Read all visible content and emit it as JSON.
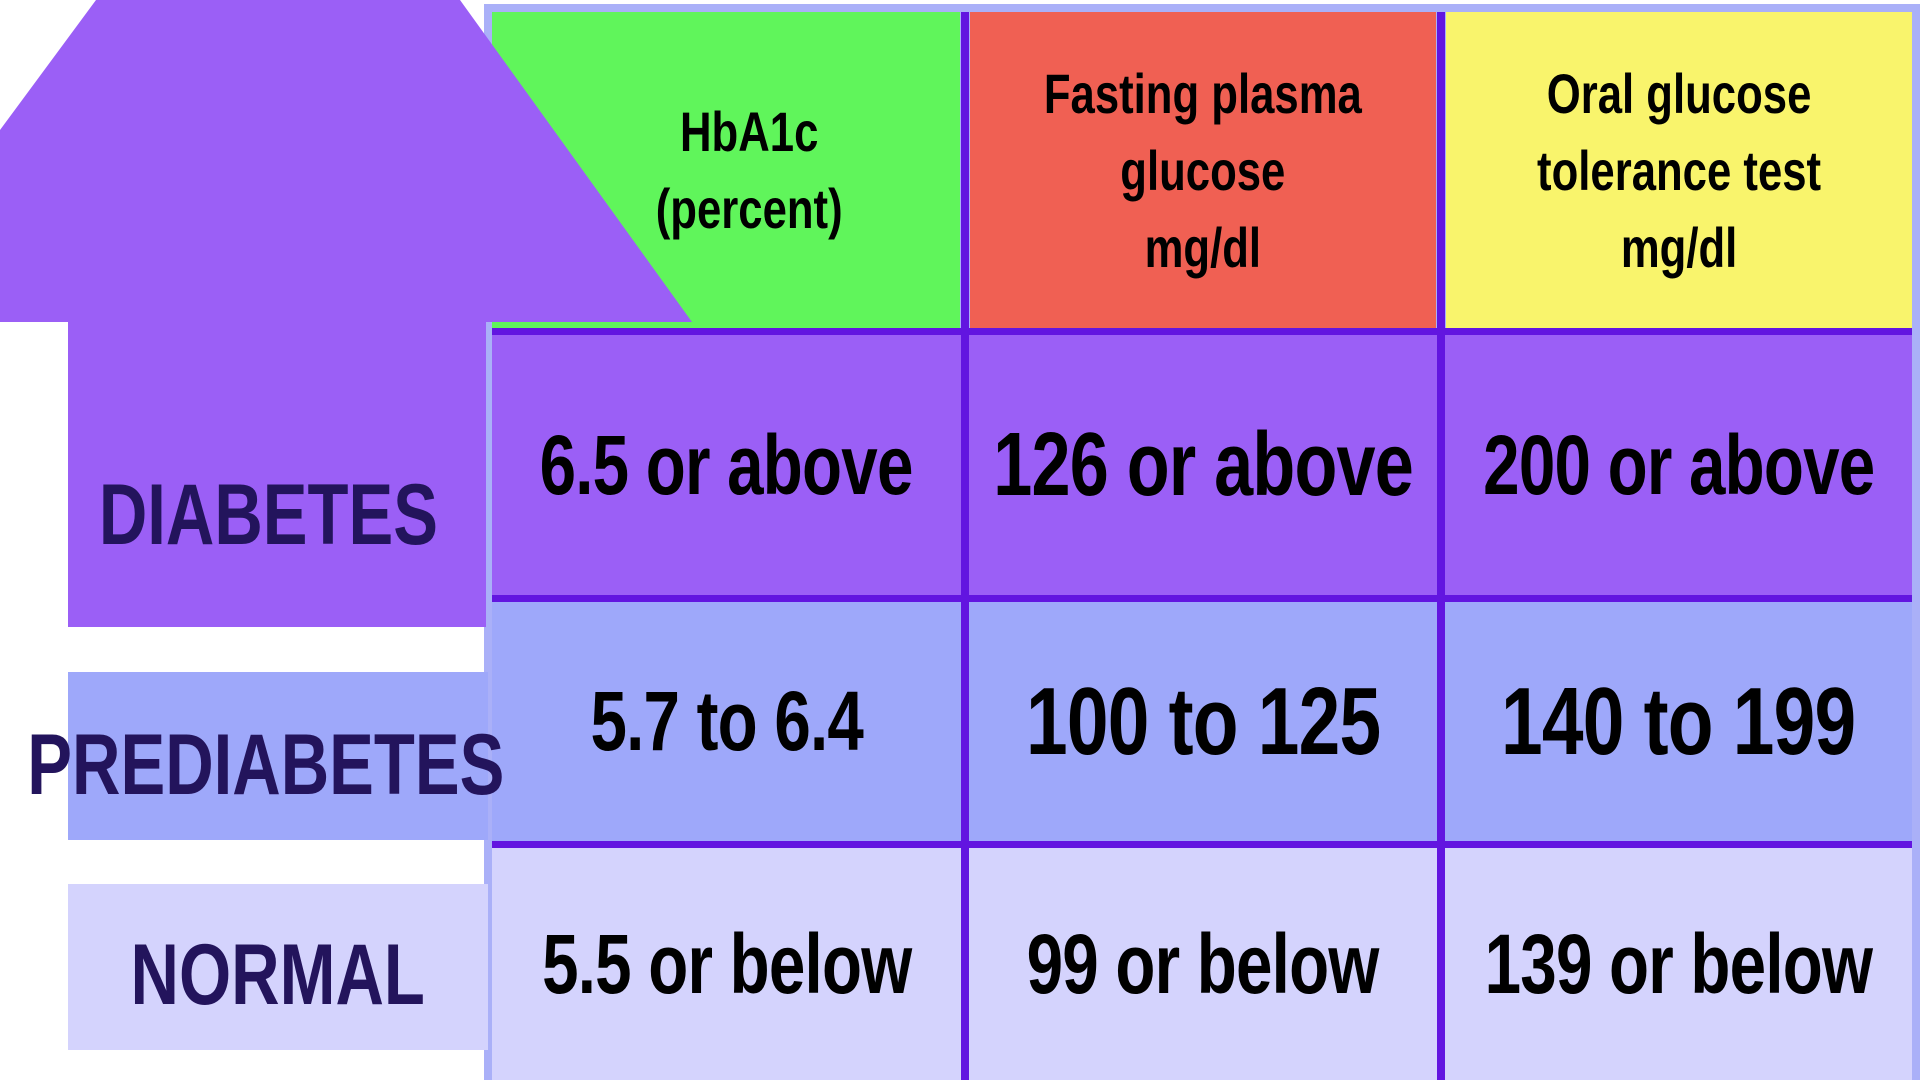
{
  "colors": {
    "diabetes": "#9b5ff6",
    "prediabetes": "#9ea8fa",
    "normal": "#d4d3fd",
    "hba1c_header": "#60f55b",
    "fasting_header": "#f06053",
    "ogtt_header": "#f9f46c",
    "grid_line": "#6215e0",
    "label_text": "#23145c"
  },
  "headers": [
    {
      "id": "hba1c",
      "text": "HbA1c\n(percent)"
    },
    {
      "id": "fasting",
      "text": "Fasting plasma\nglucose\nmg/dl"
    },
    {
      "id": "ogtt",
      "text": "Oral glucose\ntolerance test\nmg/dl"
    }
  ],
  "rows": [
    {
      "label": "DIABETES",
      "values": [
        "6.5 or above",
        "126 or above",
        "200 or above"
      ]
    },
    {
      "label": "PREDIABETES",
      "values": [
        "5.7 to 6.4",
        "100 to 125",
        "140 to 199"
      ]
    },
    {
      "label": "NORMAL",
      "values": [
        "5.5 or below",
        "99 or below",
        "139 or below"
      ]
    }
  ]
}
